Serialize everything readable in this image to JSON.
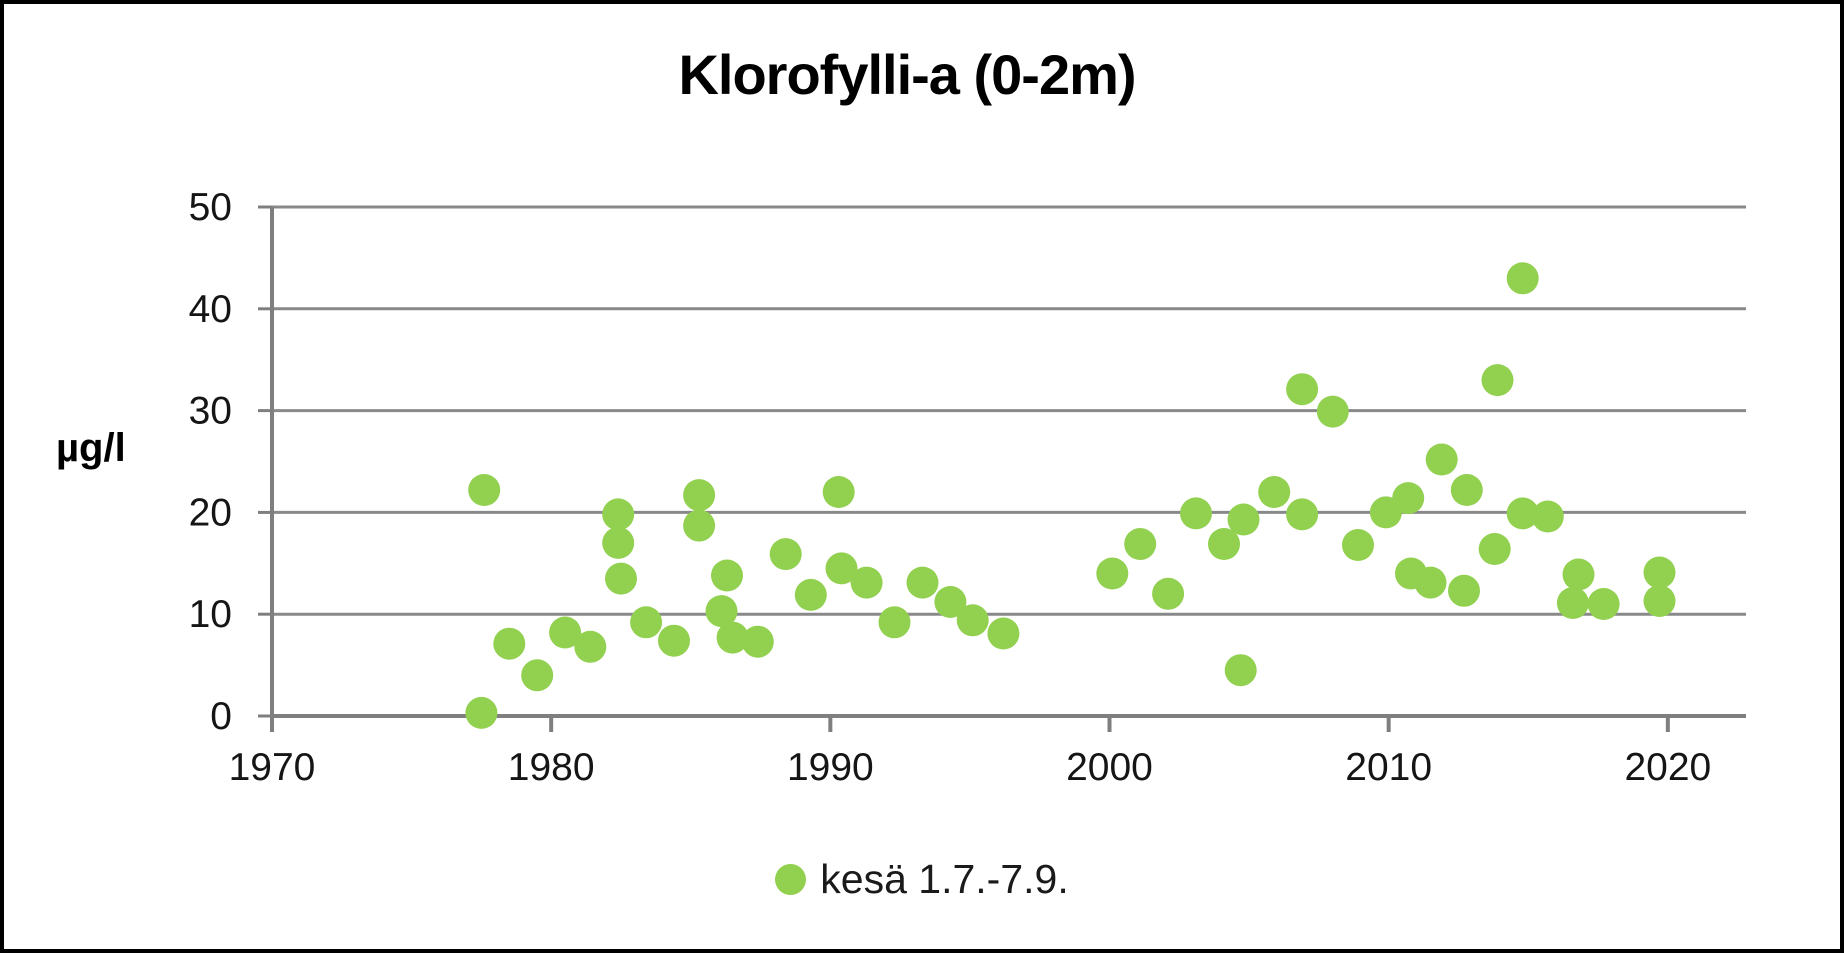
{
  "chart_data": {
    "type": "scatter",
    "title": "Klorofylli-a (0-2m)",
    "xlabel": "",
    "ylabel": "µg/l",
    "xlim": [
      1970,
      2022.8
    ],
    "ylim": [
      0,
      50
    ],
    "x_ticks": [
      1970,
      1980,
      1990,
      2000,
      2010,
      2020
    ],
    "y_ticks": [
      0,
      10,
      20,
      30,
      40,
      50
    ],
    "grid": "horizontal",
    "legend_position": "bottom-center",
    "colors": {
      "point_green": "#92D050",
      "grid_gray": "#898989",
      "axis_gray": "#7f7f7f",
      "text_black": "#151515"
    },
    "series": [
      {
        "name": "kesä 1.7.-7.9.",
        "color": "#92D050",
        "marker": "circle",
        "points": [
          [
            1977.5,
            0.3
          ],
          [
            1977.6,
            22.2
          ],
          [
            1978.5,
            7.1
          ],
          [
            1979.5,
            4.0
          ],
          [
            1980.5,
            8.2
          ],
          [
            1981.4,
            6.8
          ],
          [
            1982.4,
            19.8
          ],
          [
            1982.4,
            17.0
          ],
          [
            1982.5,
            13.5
          ],
          [
            1983.4,
            9.2
          ],
          [
            1984.4,
            7.4
          ],
          [
            1985.3,
            21.7
          ],
          [
            1985.3,
            18.7
          ],
          [
            1986.1,
            10.3
          ],
          [
            1986.3,
            13.8
          ],
          [
            1986.5,
            7.7
          ],
          [
            1987.4,
            7.3
          ],
          [
            1988.4,
            15.9
          ],
          [
            1989.3,
            11.9
          ],
          [
            1990.3,
            22.0
          ],
          [
            1990.4,
            14.5
          ],
          [
            1991.3,
            13.1
          ],
          [
            1992.3,
            9.2
          ],
          [
            1993.3,
            13.1
          ],
          [
            1994.3,
            11.2
          ],
          [
            1995.1,
            9.4
          ],
          [
            1996.2,
            8.1
          ],
          [
            2000.1,
            14.0
          ],
          [
            2001.1,
            16.9
          ],
          [
            2002.1,
            12.0
          ],
          [
            2003.1,
            19.9
          ],
          [
            2004.1,
            16.9
          ],
          [
            2004.7,
            4.5
          ],
          [
            2004.8,
            19.3
          ],
          [
            2005.9,
            22.0
          ],
          [
            2006.9,
            32.1
          ],
          [
            2006.9,
            19.8
          ],
          [
            2008.0,
            29.9
          ],
          [
            2008.9,
            16.8
          ],
          [
            2009.9,
            20.0
          ],
          [
            2010.7,
            21.4
          ],
          [
            2010.8,
            14.0
          ],
          [
            2011.5,
            13.1
          ],
          [
            2011.9,
            25.2
          ],
          [
            2012.7,
            12.3
          ],
          [
            2012.8,
            22.2
          ],
          [
            2013.8,
            16.4
          ],
          [
            2013.9,
            33.0
          ],
          [
            2014.8,
            43.0
          ],
          [
            2014.8,
            19.9
          ],
          [
            2015.7,
            19.6
          ],
          [
            2016.6,
            11.1
          ],
          [
            2016.8,
            13.9
          ],
          [
            2017.7,
            11.0
          ],
          [
            2019.7,
            14.1
          ],
          [
            2019.7,
            11.3
          ]
        ]
      }
    ]
  }
}
